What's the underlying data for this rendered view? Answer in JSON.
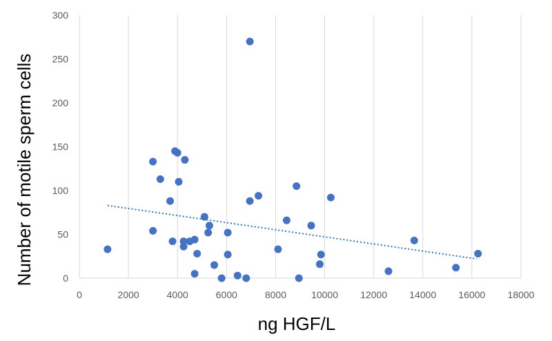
{
  "chart_data": {
    "type": "scatter",
    "title": "",
    "xlabel": "ng HGF/L",
    "ylabel": "Number of motile sperm cells",
    "xlim": [
      0,
      18000
    ],
    "ylim": [
      0,
      300
    ],
    "x_ticks": [
      "0",
      "2000",
      "4000",
      "6000",
      "8000",
      "10000",
      "12000",
      "14000",
      "16000",
      "18000"
    ],
    "y_ticks": [
      "0",
      "50",
      "100",
      "150",
      "200",
      "250",
      "300"
    ],
    "grid": "vertical",
    "legend": "none",
    "marker_color": "#4472C4",
    "trendline": {
      "style": "dotted",
      "color": "#2E75B6",
      "x": [
        1150,
        16200
      ],
      "y": [
        83,
        22
      ]
    },
    "points": [
      {
        "x": 1150,
        "y": 33
      },
      {
        "x": 3000,
        "y": 54
      },
      {
        "x": 3000,
        "y": 133
      },
      {
        "x": 3300,
        "y": 113
      },
      {
        "x": 3700,
        "y": 88
      },
      {
        "x": 3800,
        "y": 42
      },
      {
        "x": 3900,
        "y": 145
      },
      {
        "x": 4000,
        "y": 143
      },
      {
        "x": 4050,
        "y": 110
      },
      {
        "x": 4250,
        "y": 42
      },
      {
        "x": 4250,
        "y": 36
      },
      {
        "x": 4300,
        "y": 135
      },
      {
        "x": 4500,
        "y": 42
      },
      {
        "x": 4700,
        "y": 44
      },
      {
        "x": 4700,
        "y": 5
      },
      {
        "x": 4800,
        "y": 28
      },
      {
        "x": 5100,
        "y": 70
      },
      {
        "x": 5250,
        "y": 52
      },
      {
        "x": 5300,
        "y": 60
      },
      {
        "x": 5500,
        "y": 15
      },
      {
        "x": 5800,
        "y": 0
      },
      {
        "x": 6050,
        "y": 27
      },
      {
        "x": 6050,
        "y": 52
      },
      {
        "x": 6450,
        "y": 3
      },
      {
        "x": 6800,
        "y": 0
      },
      {
        "x": 6950,
        "y": 270
      },
      {
        "x": 6950,
        "y": 88
      },
      {
        "x": 7300,
        "y": 94
      },
      {
        "x": 8100,
        "y": 33
      },
      {
        "x": 8450,
        "y": 66
      },
      {
        "x": 8850,
        "y": 105
      },
      {
        "x": 8950,
        "y": 0
      },
      {
        "x": 9450,
        "y": 60
      },
      {
        "x": 9800,
        "y": 16
      },
      {
        "x": 9850,
        "y": 27
      },
      {
        "x": 10250,
        "y": 92
      },
      {
        "x": 12600,
        "y": 8
      },
      {
        "x": 13650,
        "y": 43
      },
      {
        "x": 15350,
        "y": 12
      },
      {
        "x": 16250,
        "y": 28
      }
    ]
  }
}
